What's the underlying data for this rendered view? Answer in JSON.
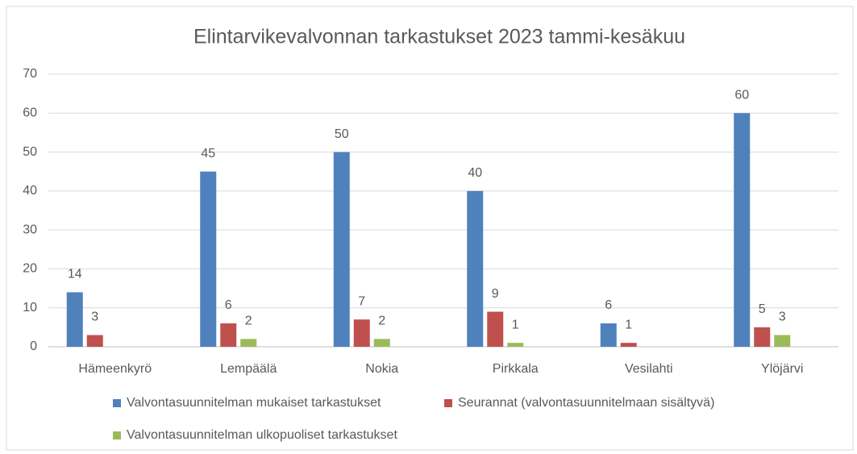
{
  "chart_data": {
    "type": "bar",
    "title": "Elintarvikevalvonnan tarkastukset 2023 tammi-kesäkuu",
    "categories": [
      "Hämeenkyrö",
      "Lempäälä",
      "Nokia",
      "Pirkkala",
      "Vesilahti",
      "Ylöjärvi"
    ],
    "series": [
      {
        "name": "Valvontasuunnitelman mukaiset tarkastukset",
        "color": "#4f81bd",
        "values": [
          14,
          45,
          50,
          40,
          6,
          60
        ]
      },
      {
        "name": "Seurannat (valvontasuunnitelmaan sisältyvä)",
        "color": "#c0504d",
        "values": [
          3,
          6,
          7,
          9,
          1,
          5
        ]
      },
      {
        "name": "Valvontasuunnitelman ulkopuoliset tarkastukset",
        "color": "#9bbb59",
        "values": [
          null,
          2,
          2,
          1,
          null,
          3
        ]
      }
    ],
    "ylim": [
      0,
      70
    ],
    "yticks": [
      0,
      10,
      20,
      30,
      40,
      50,
      60,
      70
    ],
    "grid": true,
    "legend": "bottom"
  }
}
